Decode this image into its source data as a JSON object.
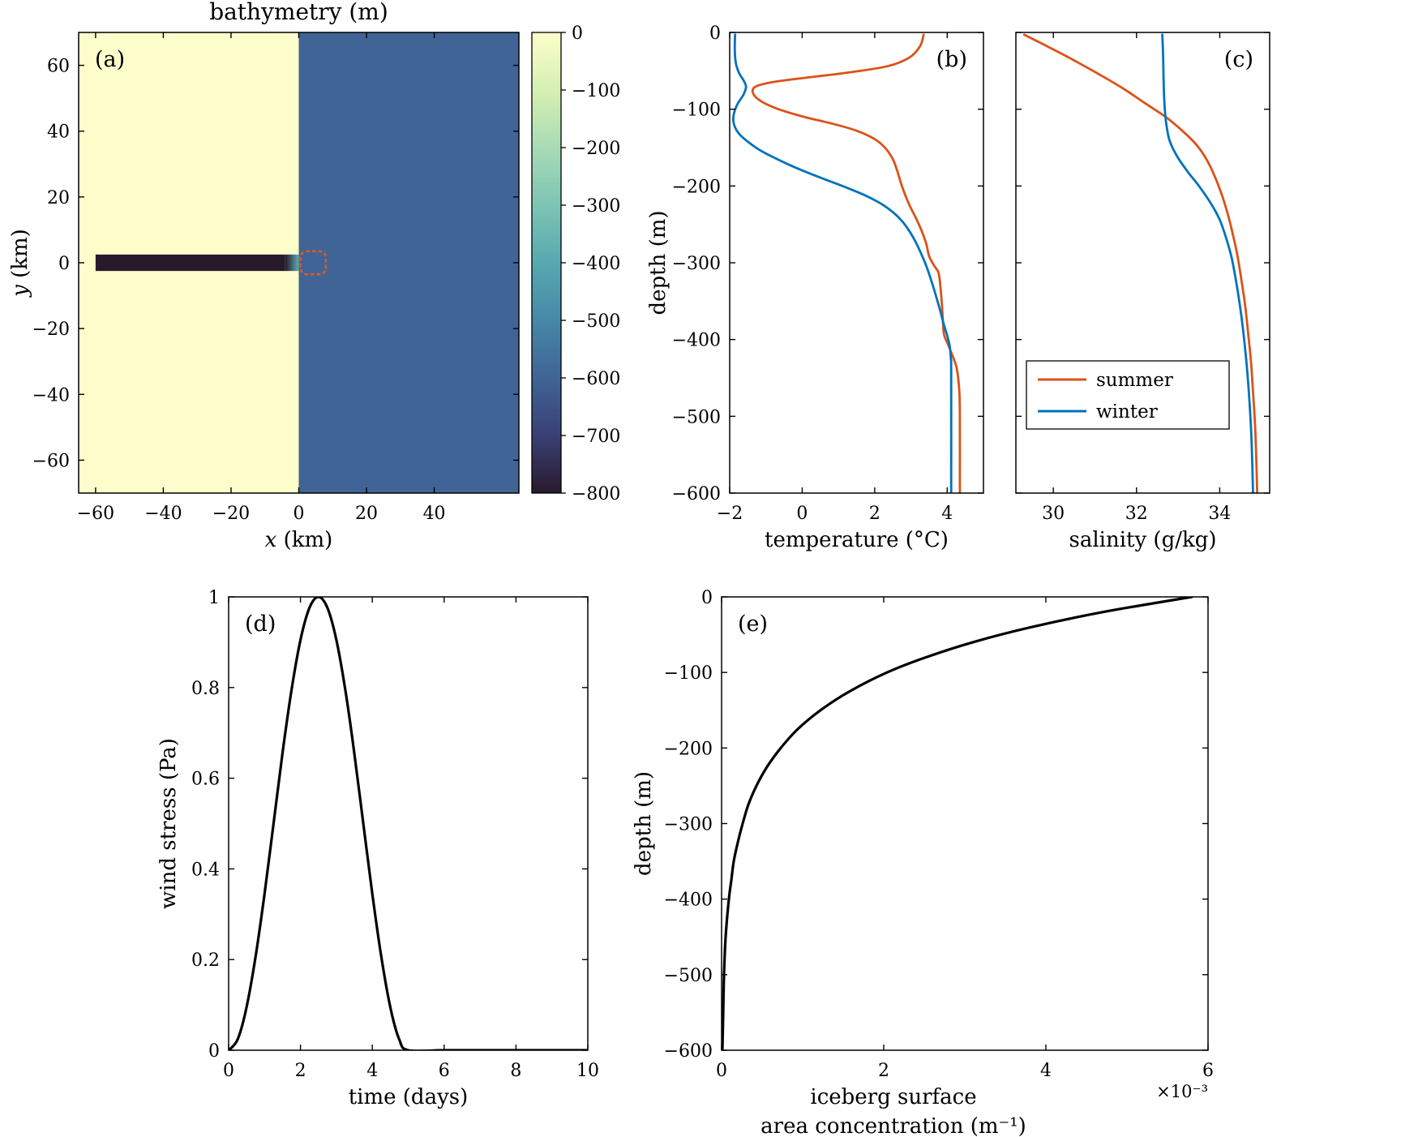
{
  "figure": {
    "background_color": "#ffffff"
  },
  "chart_data": [
    {
      "id": "a",
      "type": "heatmap",
      "letter": "(a)",
      "letter_pos": "top-left",
      "title": "bathymetry (m)",
      "xlabel_runs": [
        {
          "text": "x",
          "italic": true
        },
        {
          "text": " (km)",
          "italic": false
        }
      ],
      "ylabel_runs": [
        {
          "text": "y",
          "italic": true
        },
        {
          "text": " (km)",
          "italic": false
        }
      ],
      "xlim": [
        -65,
        65
      ],
      "ylim": [
        -70,
        70
      ],
      "xticks": [
        -60,
        -40,
        -20,
        0,
        20,
        40
      ],
      "xtick_labels": [
        "−60",
        "−40",
        "−20",
        "0",
        "20",
        "40"
      ],
      "yticks": [
        -60,
        -40,
        -20,
        0,
        20,
        40,
        60
      ],
      "ytick_labels": [
        "−60",
        "−40",
        "−20",
        "0",
        "20",
        "40",
        "60"
      ],
      "colormap": {
        "max": 0,
        "min": -800,
        "stops": [
          [
            0,
            "#fdfecb"
          ],
          [
            -100,
            "#d6f0b1"
          ],
          [
            -200,
            "#a8dbb5"
          ],
          [
            -300,
            "#7dc4b4"
          ],
          [
            -400,
            "#57a9b0"
          ],
          [
            -500,
            "#4688a8"
          ],
          [
            -600,
            "#406496"
          ],
          [
            -700,
            "#3a4075"
          ],
          [
            -800,
            "#281a2c"
          ]
        ]
      },
      "regions": [
        {
          "name": "shelf",
          "x": [
            -65,
            0
          ],
          "y": [
            -70,
            70
          ],
          "depth": 0
        },
        {
          "name": "open-ocean",
          "x": [
            0,
            65
          ],
          "y": [
            -70,
            70
          ],
          "depth": -600
        },
        {
          "name": "fjord-channel",
          "x": [
            -60,
            -4
          ],
          "y": [
            -2.5,
            2.5
          ],
          "depth": -800
        },
        {
          "name": "fjord-mouth-sill",
          "x": [
            -4,
            0
          ],
          "y": [
            -2.5,
            2.5
          ],
          "depth_from": -800,
          "depth_to": -380
        }
      ],
      "marker": {
        "name": "iceberg-zone",
        "x": [
          0.5,
          8
        ],
        "y": [
          -3.5,
          3.5
        ],
        "color": "#e8551c"
      },
      "colorbar": {
        "ticks": [
          0,
          -100,
          -200,
          -300,
          -400,
          -500,
          -600,
          -700,
          -800
        ],
        "tick_labels": [
          "0",
          "−100",
          "−200",
          "−300",
          "−400",
          "−500",
          "−600",
          "−700",
          "−800"
        ]
      }
    },
    {
      "id": "b",
      "type": "line",
      "letter": "(b)",
      "letter_pos": "top-right",
      "xlabel_runs": [
        {
          "text": "temperature (°C)",
          "italic": false
        }
      ],
      "ylabel_runs": [
        {
          "text": "depth (m)",
          "italic": false
        }
      ],
      "xlim": [
        -2,
        5
      ],
      "ylim": [
        -600,
        0
      ],
      "xticks": [
        -2,
        0,
        2,
        4
      ],
      "xtick_labels": [
        "−2",
        "0",
        "2",
        "4"
      ],
      "yticks": [
        0,
        -100,
        -200,
        -300,
        -400,
        -500,
        -600
      ],
      "ytick_labels": [
        "0",
        "−100",
        "−200",
        "−300",
        "−400",
        "−500",
        "−600"
      ],
      "series": [
        {
          "name": "summer",
          "color": "#d95319",
          "width": 2.8,
          "points": [
            [
              3.35,
              -3
            ],
            [
              3.25,
              -18
            ],
            [
              2.95,
              -33
            ],
            [
              2.35,
              -44
            ],
            [
              1.3,
              -52
            ],
            [
              0.1,
              -59
            ],
            [
              -0.85,
              -65
            ],
            [
              -1.3,
              -71
            ],
            [
              -1.35,
              -80
            ],
            [
              -1.12,
              -90
            ],
            [
              -0.65,
              -100
            ],
            [
              0.05,
              -110
            ],
            [
              0.85,
              -119
            ],
            [
              1.5,
              -128
            ],
            [
              2.0,
              -139
            ],
            [
              2.3,
              -151
            ],
            [
              2.5,
              -165
            ],
            [
              2.62,
              -180
            ],
            [
              2.73,
              -197
            ],
            [
              2.86,
              -214
            ],
            [
              3.0,
              -229
            ],
            [
              3.16,
              -244
            ],
            [
              3.3,
              -259
            ],
            [
              3.42,
              -275
            ],
            [
              3.5,
              -291
            ],
            [
              3.63,
              -303
            ],
            [
              3.76,
              -313
            ],
            [
              3.81,
              -330
            ],
            [
              3.85,
              -352
            ],
            [
              3.88,
              -374
            ],
            [
              3.91,
              -393
            ],
            [
              4.01,
              -405
            ],
            [
              4.13,
              -419
            ],
            [
              4.25,
              -435
            ],
            [
              4.31,
              -453
            ],
            [
              4.34,
              -473
            ],
            [
              4.35,
              -505
            ],
            [
              4.35,
              -600
            ]
          ]
        },
        {
          "name": "winter",
          "color": "#0072bd",
          "width": 2.8,
          "points": [
            [
              -1.85,
              -3
            ],
            [
              -1.86,
              -22
            ],
            [
              -1.83,
              -40
            ],
            [
              -1.74,
              -53
            ],
            [
              -1.61,
              -63
            ],
            [
              -1.55,
              -71
            ],
            [
              -1.62,
              -81
            ],
            [
              -1.78,
              -93
            ],
            [
              -1.88,
              -105
            ],
            [
              -1.9,
              -115
            ],
            [
              -1.84,
              -125
            ],
            [
              -1.7,
              -134
            ],
            [
              -1.48,
              -143
            ],
            [
              -1.18,
              -153
            ],
            [
              -0.78,
              -163
            ],
            [
              -0.33,
              -173
            ],
            [
              0.17,
              -183
            ],
            [
              0.72,
              -193
            ],
            [
              1.27,
              -203
            ],
            [
              1.77,
              -213
            ],
            [
              2.17,
              -223
            ],
            [
              2.5,
              -234
            ],
            [
              2.76,
              -246
            ],
            [
              2.96,
              -259
            ],
            [
              3.13,
              -273
            ],
            [
              3.29,
              -289
            ],
            [
              3.43,
              -305
            ],
            [
              3.56,
              -323
            ],
            [
              3.69,
              -343
            ],
            [
              3.81,
              -363
            ],
            [
              3.91,
              -381
            ],
            [
              4.0,
              -395
            ],
            [
              4.07,
              -409
            ],
            [
              4.1,
              -425
            ],
            [
              4.11,
              -445
            ],
            [
              4.11,
              -600
            ]
          ]
        }
      ]
    },
    {
      "id": "c",
      "type": "line",
      "letter": "(c)",
      "letter_pos": "top-right",
      "xlabel_runs": [
        {
          "text": "salinity (g/kg)",
          "italic": false
        }
      ],
      "xlim": [
        29.1,
        35.2
      ],
      "ylim": [
        -600,
        0
      ],
      "xticks": [
        30,
        32,
        34
      ],
      "xtick_labels": [
        "30",
        "32",
        "34"
      ],
      "yticks": [
        0,
        -100,
        -200,
        -300,
        -400,
        -500,
        -600
      ],
      "ytick_labels": [
        "",
        "",
        "",
        "",
        "",
        "",
        ""
      ],
      "legend": {
        "position": "bottom-left"
      },
      "series": [
        {
          "name": "summer",
          "color": "#d95319",
          "width": 2.8,
          "points": [
            [
              29.3,
              -3
            ],
            [
              29.85,
              -18
            ],
            [
              30.45,
              -35
            ],
            [
              31.05,
              -53
            ],
            [
              31.65,
              -72
            ],
            [
              32.2,
              -92
            ],
            [
              32.7,
              -110
            ],
            [
              33.1,
              -128
            ],
            [
              33.45,
              -147
            ],
            [
              33.7,
              -167
            ],
            [
              33.9,
              -190
            ],
            [
              34.06,
              -213
            ],
            [
              34.2,
              -238
            ],
            [
              34.32,
              -264
            ],
            [
              34.43,
              -292
            ],
            [
              34.52,
              -322
            ],
            [
              34.61,
              -355
            ],
            [
              34.68,
              -390
            ],
            [
              34.75,
              -428
            ],
            [
              34.8,
              -468
            ],
            [
              34.85,
              -512
            ],
            [
              34.88,
              -558
            ],
            [
              34.9,
              -600
            ]
          ]
        },
        {
          "name": "winter",
          "color": "#0072bd",
          "width": 2.8,
          "points": [
            [
              32.62,
              -3
            ],
            [
              32.64,
              -32
            ],
            [
              32.65,
              -62
            ],
            [
              32.67,
              -92
            ],
            [
              32.71,
              -117
            ],
            [
              32.79,
              -140
            ],
            [
              32.96,
              -160
            ],
            [
              33.21,
              -180
            ],
            [
              33.5,
              -200
            ],
            [
              33.78,
              -222
            ],
            [
              34.0,
              -244
            ],
            [
              34.15,
              -267
            ],
            [
              34.28,
              -292
            ],
            [
              34.38,
              -320
            ],
            [
              34.47,
              -350
            ],
            [
              34.55,
              -382
            ],
            [
              34.62,
              -417
            ],
            [
              34.68,
              -454
            ],
            [
              34.73,
              -494
            ],
            [
              34.77,
              -538
            ],
            [
              34.8,
              -600
            ]
          ]
        }
      ]
    },
    {
      "id": "d",
      "type": "line",
      "letter": "(d)",
      "letter_pos": "top-left",
      "xlabel_runs": [
        {
          "text": "time (days)",
          "italic": false
        }
      ],
      "ylabel_runs": [
        {
          "text": "wind stress (Pa)",
          "italic": false
        }
      ],
      "xlim": [
        0,
        10
      ],
      "ylim": [
        0,
        1
      ],
      "xticks": [
        0,
        2,
        4,
        6,
        8,
        10
      ],
      "xtick_labels": [
        "0",
        "2",
        "4",
        "6",
        "8",
        "10"
      ],
      "yticks": [
        0,
        0.2,
        0.4,
        0.6,
        0.8,
        1
      ],
      "ytick_labels": [
        "0",
        "0.2",
        "0.4",
        "0.6",
        "0.8",
        "1"
      ],
      "series": [
        {
          "name": "wind-stress",
          "color": "#000000",
          "width": 3.2,
          "points": [
            [
              0,
              0
            ],
            [
              0.25,
              0.024
            ],
            [
              0.5,
              0.095
            ],
            [
              0.75,
              0.206
            ],
            [
              1,
              0.345
            ],
            [
              1.25,
              0.5
            ],
            [
              1.5,
              0.655
            ],
            [
              1.75,
              0.794
            ],
            [
              2,
              0.905
            ],
            [
              2.25,
              0.976
            ],
            [
              2.5,
              1
            ],
            [
              2.75,
              0.976
            ],
            [
              3,
              0.905
            ],
            [
              3.25,
              0.794
            ],
            [
              3.5,
              0.655
            ],
            [
              3.75,
              0.5
            ],
            [
              4,
              0.345
            ],
            [
              4.25,
              0.206
            ],
            [
              4.5,
              0.095
            ],
            [
              4.75,
              0.024
            ],
            [
              5,
              0
            ],
            [
              6,
              0
            ],
            [
              7,
              0
            ],
            [
              8,
              0
            ],
            [
              9,
              0
            ],
            [
              10,
              0
            ]
          ]
        }
      ]
    },
    {
      "id": "e",
      "type": "line",
      "letter": "(e)",
      "letter_pos": "top-left",
      "xlabel_runs": [
        {
          "text": "iceberg surface",
          "italic": false
        }
      ],
      "xlabel2_runs": [
        {
          "text": "area concentration (m⁻¹)",
          "italic": false
        }
      ],
      "ylabel_runs": [
        {
          "text": "depth (m)",
          "italic": false
        }
      ],
      "x_exponent": "×10⁻³",
      "xlim": [
        0,
        0.006
      ],
      "ylim": [
        -600,
        0
      ],
      "xticks": [
        0,
        0.002,
        0.004,
        0.006
      ],
      "xtick_labels": [
        "0",
        "2",
        "4",
        "6"
      ],
      "yticks": [
        0,
        -100,
        -200,
        -300,
        -400,
        -500,
        -600
      ],
      "ytick_labels": [
        "0",
        "−100",
        "−200",
        "−300",
        "−400",
        "−500",
        "−600"
      ],
      "series": [
        {
          "name": "iceberg-area-concentration",
          "color": "#000000",
          "width": 3.2,
          "points": [
            [
              0.0058,
              0
            ],
            [
              0.00471,
              -20
            ],
            [
              0.00382,
              -40
            ],
            [
              0.0031,
              -60
            ],
            [
              0.00252,
              -80
            ],
            [
              0.00204,
              -100
            ],
            [
              0.00158,
              -125
            ],
            [
              0.00122,
              -150
            ],
            [
              0.00094,
              -175
            ],
            [
              0.00073,
              -200
            ],
            [
              0.00056,
              -225
            ],
            [
              0.00043,
              -250
            ],
            [
              0.00033,
              -275
            ],
            [
              0.00026,
              -300
            ],
            [
              0.0002,
              -325
            ],
            [
              0.00015,
              -350
            ],
            [
              0.00012,
              -375
            ],
            [
              9e-05,
              -400
            ],
            [
              5e-05,
              -450
            ],
            [
              3e-05,
              -500
            ],
            [
              2e-05,
              -550
            ],
            [
              1e-05,
              -600
            ]
          ]
        }
      ]
    }
  ]
}
